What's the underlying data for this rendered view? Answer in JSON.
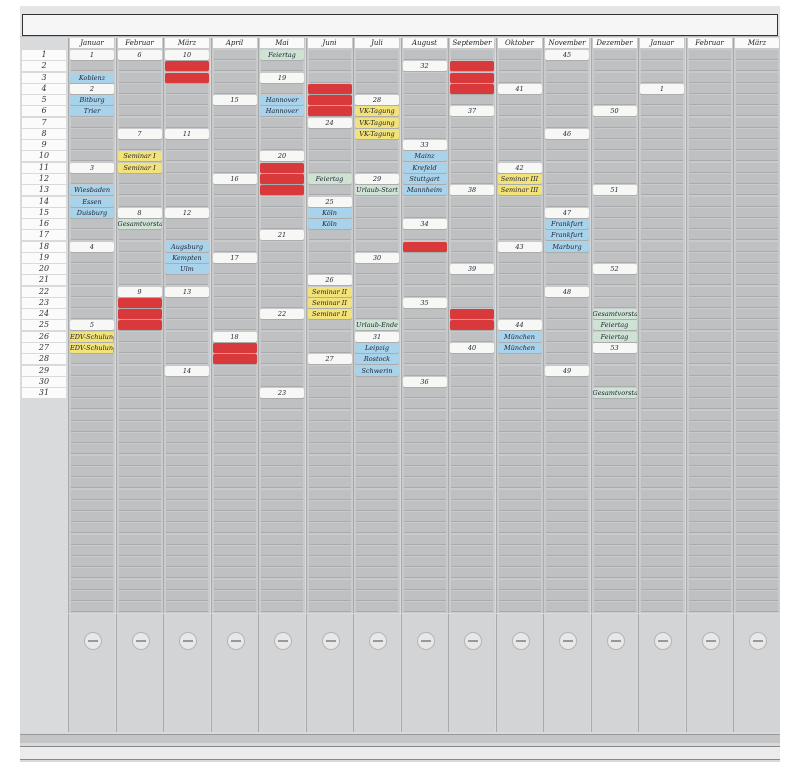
{
  "colors": {
    "white": "#f7f7f5",
    "blue": "#a9d3ea",
    "red": "#d9393b",
    "yellow": "#f2e27a",
    "green": "#cfe3d5"
  },
  "days": [
    "1",
    "2",
    "3",
    "4",
    "5",
    "6",
    "7",
    "8",
    "9",
    "10",
    "11",
    "12",
    "13",
    "14",
    "15",
    "16",
    "17",
    "18",
    "19",
    "20",
    "21",
    "22",
    "23",
    "24",
    "25",
    "26",
    "27",
    "28",
    "29",
    "30",
    "31"
  ],
  "columns": [
    {
      "label": "Januar",
      "cards": [
        [
          1,
          "white",
          "1"
        ],
        [
          3,
          "blue",
          "Koblenz"
        ],
        [
          4,
          "white",
          "2"
        ],
        [
          5,
          "blue",
          "Bitburg"
        ],
        [
          6,
          "blue",
          "Trier"
        ],
        [
          11,
          "white",
          "3"
        ],
        [
          13,
          "blue",
          "Wiesbaden"
        ],
        [
          14,
          "blue",
          "Essen"
        ],
        [
          15,
          "blue",
          "Duisburg"
        ],
        [
          18,
          "white",
          "4"
        ],
        [
          25,
          "white",
          "5"
        ],
        [
          26,
          "yellow",
          "EDV-Schulung"
        ],
        [
          27,
          "yellow",
          "EDV-Schulung"
        ]
      ]
    },
    {
      "label": "Februar",
      "cards": [
        [
          1,
          "white",
          "6"
        ],
        [
          8,
          "white",
          "7"
        ],
        [
          10,
          "yellow",
          "Seminar I"
        ],
        [
          11,
          "yellow",
          "Seminar I"
        ],
        [
          15,
          "white",
          "8"
        ],
        [
          16,
          "green",
          "Gesamtvorstand"
        ],
        [
          22,
          "white",
          "9"
        ],
        [
          23,
          "red",
          ""
        ],
        [
          24,
          "red",
          ""
        ],
        [
          25,
          "red",
          ""
        ]
      ]
    },
    {
      "label": "März",
      "cards": [
        [
          1,
          "white",
          "10"
        ],
        [
          2,
          "red",
          ""
        ],
        [
          3,
          "red",
          ""
        ],
        [
          8,
          "white",
          "11"
        ],
        [
          15,
          "white",
          "12"
        ],
        [
          18,
          "blue",
          "Augsburg"
        ],
        [
          19,
          "blue",
          "Kempten"
        ],
        [
          20,
          "blue",
          "Ulm"
        ],
        [
          22,
          "white",
          "13"
        ],
        [
          29,
          "white",
          "14"
        ]
      ]
    },
    {
      "label": "April",
      "cards": [
        [
          5,
          "white",
          "15"
        ],
        [
          12,
          "white",
          "16"
        ],
        [
          19,
          "white",
          "17"
        ],
        [
          26,
          "white",
          "18"
        ],
        [
          27,
          "red",
          ""
        ],
        [
          28,
          "red",
          ""
        ]
      ]
    },
    {
      "label": "Mai",
      "cards": [
        [
          1,
          "green",
          "Feiertag"
        ],
        [
          3,
          "white",
          "19"
        ],
        [
          5,
          "blue",
          "Hannover"
        ],
        [
          6,
          "blue",
          "Hannover"
        ],
        [
          10,
          "white",
          "20"
        ],
        [
          11,
          "red",
          ""
        ],
        [
          12,
          "red",
          ""
        ],
        [
          13,
          "red",
          ""
        ],
        [
          17,
          "white",
          "21"
        ],
        [
          24,
          "white",
          "22"
        ],
        [
          31,
          "white",
          "23"
        ]
      ]
    },
    {
      "label": "Juni",
      "cards": [
        [
          4,
          "red",
          ""
        ],
        [
          5,
          "red",
          ""
        ],
        [
          6,
          "red",
          ""
        ],
        [
          7,
          "white",
          "24"
        ],
        [
          12,
          "green",
          "Feiertag"
        ],
        [
          14,
          "white",
          "25"
        ],
        [
          15,
          "blue",
          "Köln"
        ],
        [
          16,
          "blue",
          "Köln"
        ],
        [
          21,
          "white",
          "26"
        ],
        [
          22,
          "yellow",
          "Seminar II"
        ],
        [
          23,
          "yellow",
          "Seminar II"
        ],
        [
          24,
          "yellow",
          "Seminar II"
        ],
        [
          28,
          "white",
          "27"
        ]
      ]
    },
    {
      "label": "Juli",
      "cards": [
        [
          5,
          "white",
          "28"
        ],
        [
          6,
          "yellow",
          "VK-Tagung"
        ],
        [
          7,
          "yellow",
          "VK-Tagung"
        ],
        [
          8,
          "yellow",
          "VK-Tagung"
        ],
        [
          12,
          "white",
          "29"
        ],
        [
          13,
          "green",
          "Urlaub-Start"
        ],
        [
          19,
          "white",
          "30"
        ],
        [
          25,
          "green",
          "Urlaub-Ende"
        ],
        [
          26,
          "white",
          "31"
        ],
        [
          27,
          "blue",
          "Leipzig"
        ],
        [
          28,
          "blue",
          "Rostock"
        ],
        [
          29,
          "blue",
          "Schwerin"
        ]
      ]
    },
    {
      "label": "August",
      "cards": [
        [
          2,
          "white",
          "32"
        ],
        [
          9,
          "white",
          "33"
        ],
        [
          10,
          "blue",
          "Mainz"
        ],
        [
          11,
          "blue",
          "Krefeld"
        ],
        [
          12,
          "blue",
          "Stuttgart"
        ],
        [
          13,
          "blue",
          "Mannheim"
        ],
        [
          16,
          "white",
          "34"
        ],
        [
          18,
          "red",
          ""
        ],
        [
          23,
          "white",
          "35"
        ],
        [
          30,
          "white",
          "36"
        ]
      ]
    },
    {
      "label": "September",
      "cards": [
        [
          2,
          "red",
          ""
        ],
        [
          3,
          "red",
          ""
        ],
        [
          4,
          "red",
          ""
        ],
        [
          6,
          "white",
          "37"
        ],
        [
          13,
          "white",
          "38"
        ],
        [
          20,
          "white",
          "39"
        ],
        [
          24,
          "red",
          ""
        ],
        [
          25,
          "red",
          ""
        ],
        [
          27,
          "white",
          "40"
        ]
      ]
    },
    {
      "label": "Oktober",
      "cards": [
        [
          4,
          "white",
          "41"
        ],
        [
          11,
          "white",
          "42"
        ],
        [
          12,
          "yellow",
          "Seminar III"
        ],
        [
          13,
          "yellow",
          "Seminar III"
        ],
        [
          18,
          "white",
          "43"
        ],
        [
          25,
          "white",
          "44"
        ],
        [
          26,
          "blue",
          "München"
        ],
        [
          27,
          "blue",
          "München"
        ]
      ]
    },
    {
      "label": "November",
      "cards": [
        [
          1,
          "white",
          "45"
        ],
        [
          8,
          "white",
          "46"
        ],
        [
          15,
          "white",
          "47"
        ],
        [
          16,
          "blue",
          "Frankfurt"
        ],
        [
          17,
          "blue",
          "Frankfurt"
        ],
        [
          18,
          "blue",
          "Marburg"
        ],
        [
          22,
          "white",
          "48"
        ],
        [
          29,
          "white",
          "49"
        ]
      ]
    },
    {
      "label": "Dezember",
      "cards": [
        [
          6,
          "white",
          "50"
        ],
        [
          13,
          "white",
          "51"
        ],
        [
          20,
          "white",
          "52"
        ],
        [
          24,
          "green",
          "Gesamtvorstand"
        ],
        [
          25,
          "green",
          "Feiertag"
        ],
        [
          26,
          "green",
          "Feiertag"
        ],
        [
          27,
          "white",
          "53"
        ],
        [
          31,
          "green",
          "Gesamtvorstand"
        ]
      ]
    },
    {
      "label": "Januar",
      "cards": [
        [
          4,
          "white",
          "1"
        ]
      ]
    },
    {
      "label": "Februar",
      "cards": []
    },
    {
      "label": "März",
      "cards": []
    }
  ]
}
